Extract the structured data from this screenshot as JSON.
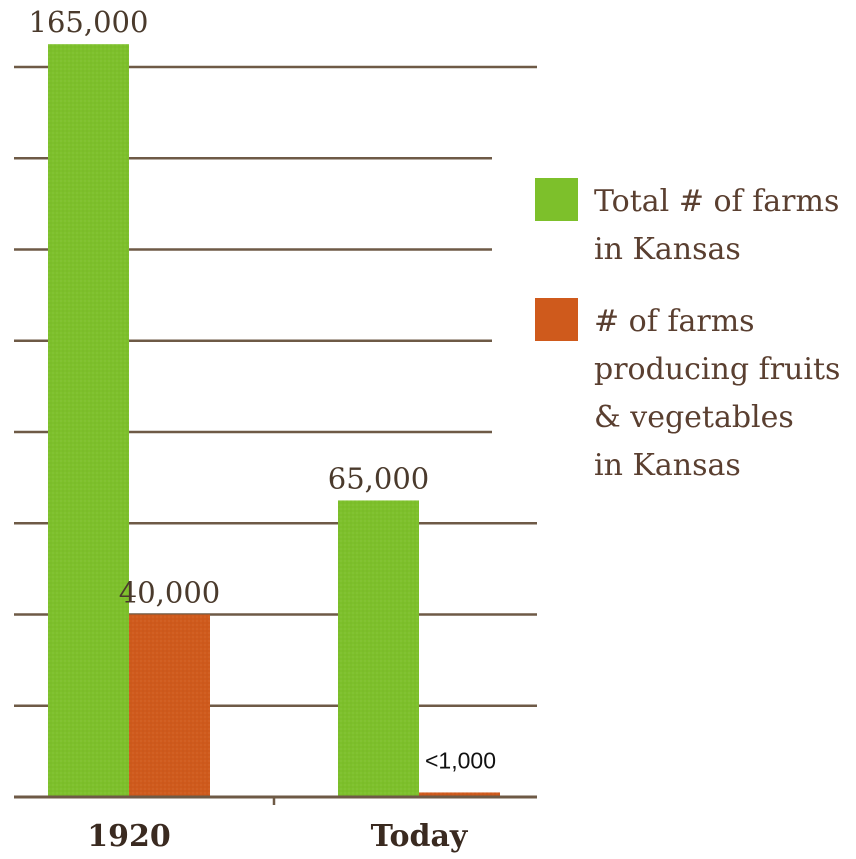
{
  "chart_data": {
    "type": "bar",
    "categories": [
      "1920",
      "Today"
    ],
    "series": [
      {
        "name": "Total # of farms in Kansas",
        "legend_lines": [
          "Total # of farms",
          "in Kansas"
        ],
        "color": "#7dc02b",
        "values": [
          165000,
          65000
        ],
        "labels": [
          "165,000",
          "65,000"
        ]
      },
      {
        "name": "# of farms producing fruits & vegetables in Kansas",
        "legend_lines": [
          "# of farms",
          "producing fruits",
          "& vegetables",
          "in Kansas"
        ],
        "color": "#cf5a1c",
        "values": [
          40000,
          1000
        ],
        "labels": [
          "40,000",
          "<1,000"
        ]
      }
    ],
    "ylim": [
      0,
      160000
    ],
    "gridline_step": 20000,
    "grid": true,
    "legend_position": "right",
    "gridline_color": "#6e5a46",
    "title": "",
    "xlabel": "",
    "ylabel": ""
  }
}
